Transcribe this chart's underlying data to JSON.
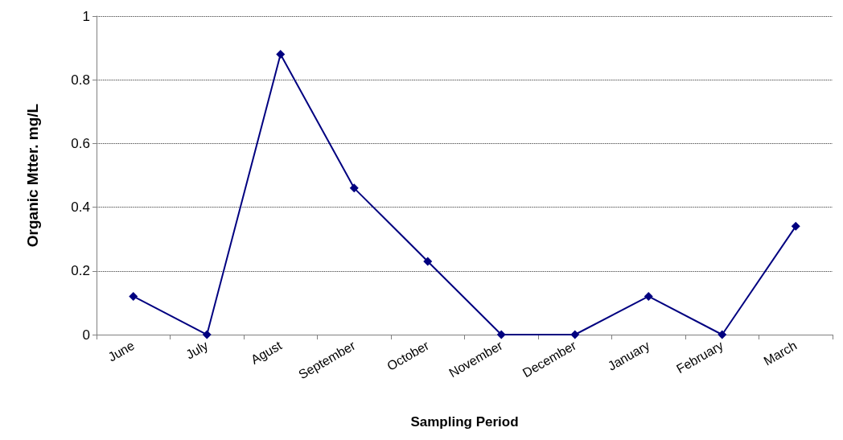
{
  "chart_data": {
    "type": "line",
    "xlabel": "Sampling Period",
    "ylabel": "Organic Mtter. mg/L",
    "categories": [
      "June",
      "July",
      "Agust",
      "September",
      "October",
      "November",
      "December",
      "January",
      "February",
      "March"
    ],
    "series": [
      {
        "color": "#000080",
        "values": [
          0.12,
          0,
          0.88,
          0.46,
          0.23,
          0,
          0,
          0.12,
          0,
          0.34
        ]
      }
    ],
    "ylim": [
      0,
      1
    ],
    "yticks": [
      0,
      0.2,
      0.4,
      0.6,
      0.8,
      1
    ],
    "grid": "y",
    "marker": "diamond",
    "line_style": "solid"
  }
}
